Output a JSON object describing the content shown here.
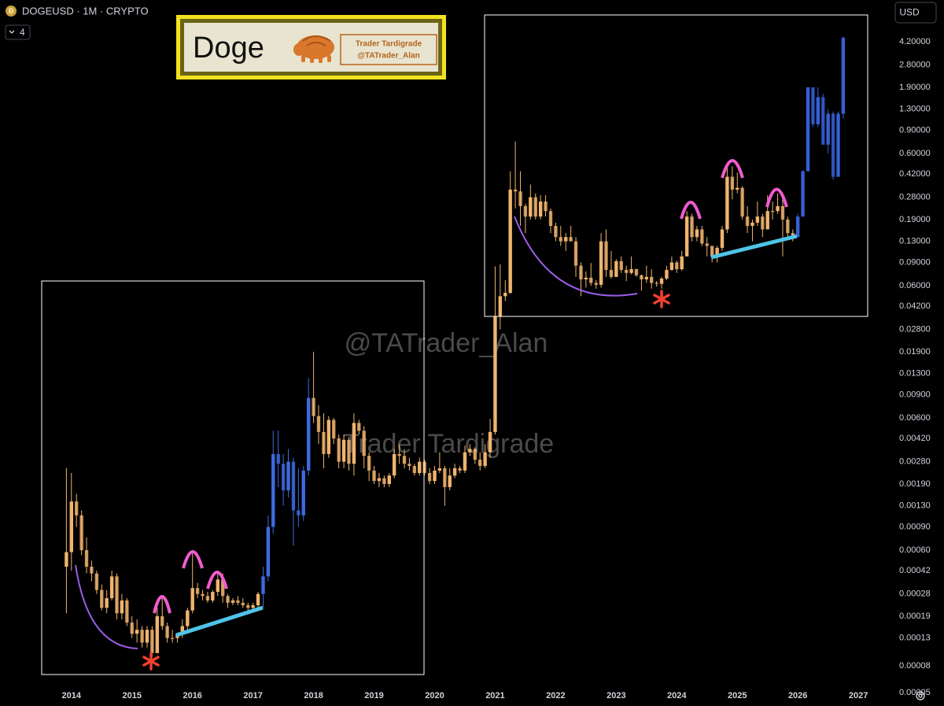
{
  "header": {
    "symbol": "DOGEUSD · 1M · CRYPTO",
    "indicator_count": 4,
    "currency": "USD"
  },
  "logo_box": {
    "title": "Doge",
    "author": "Trader Tardigrade",
    "handle": "@TATrader_Alan"
  },
  "watermarks": {
    "handle": "@TATrader_Alan",
    "name": "Trader Tardigrade"
  },
  "chart_data": {
    "type": "candlestick",
    "log_scale": true,
    "grid": false,
    "xlim": [
      2012.82,
      2027.57
    ],
    "xticks": [
      2014,
      2015,
      2016,
      2017,
      2018,
      2019,
      2020,
      2021,
      2022,
      2023,
      2024,
      2025,
      2026,
      2027
    ],
    "ylim": [
      5.76e-05,
      8.69
    ],
    "yticks": [
      {
        "value": 4.2,
        "label": "4.20000"
      },
      {
        "value": 2.8,
        "label": "2.80000"
      },
      {
        "value": 1.9,
        "label": "1.90000"
      },
      {
        "value": 1.3,
        "label": "1.30000"
      },
      {
        "value": 0.9,
        "label": "0.90000"
      },
      {
        "value": 0.6,
        "label": "0.60000"
      },
      {
        "value": 0.42,
        "label": "0.42000"
      },
      {
        "value": 0.28,
        "label": "0.28000"
      },
      {
        "value": 0.19,
        "label": "0.19000"
      },
      {
        "value": 0.13,
        "label": "0.13000"
      },
      {
        "value": 0.09,
        "label": "0.09000"
      },
      {
        "value": 0.06,
        "label": "0.06000"
      },
      {
        "value": 0.042,
        "label": "0.04200"
      },
      {
        "value": 0.028,
        "label": "0.02800"
      },
      {
        "value": 0.019,
        "label": "0.01900"
      },
      {
        "value": 0.013,
        "label": "0.01300"
      },
      {
        "value": 0.009,
        "label": "0.00900"
      },
      {
        "value": 0.006,
        "label": "0.00600"
      },
      {
        "value": 0.0042,
        "label": "0.00420"
      },
      {
        "value": 0.0028,
        "label": "0.00280"
      },
      {
        "value": 0.0019,
        "label": "0.00190"
      },
      {
        "value": 0.0013,
        "label": "0.00130"
      },
      {
        "value": 0.0009,
        "label": "0.00090"
      },
      {
        "value": 0.0006,
        "label": "0.00060"
      },
      {
        "value": 0.00042,
        "label": "0.00042"
      },
      {
        "value": 0.00028,
        "label": "0.00028"
      },
      {
        "value": 0.00019,
        "label": "0.00019"
      },
      {
        "value": 0.00013,
        "label": "0.00013"
      },
      {
        "value": 8e-05,
        "label": "0.00008"
      },
      {
        "value": 5e-05,
        "label": "0.00005"
      }
    ],
    "series": [
      {
        "color": "#f0b46e",
        "x": [
          2013.917,
          2014.0,
          2014.083,
          2014.167,
          2014.25,
          2014.333,
          2014.417,
          2014.5,
          2014.583,
          2014.667,
          2014.75,
          2014.833,
          2014.917,
          2015.0,
          2015.083,
          2015.167,
          2015.25,
          2015.333,
          2015.417,
          2015.5,
          2015.583,
          2015.667,
          2015.75,
          2015.833,
          2015.917,
          2016.0,
          2016.083,
          2016.167,
          2016.25,
          2016.333,
          2016.417,
          2016.5,
          2016.583,
          2016.667,
          2016.75,
          2016.833,
          2016.917,
          2017.0,
          2017.083
        ],
        "open": [
          0.00045,
          0.00058,
          0.0014,
          0.0011,
          0.0006,
          0.00045,
          0.0004,
          0.0003,
          0.00022,
          0.00026,
          0.00038,
          0.0002,
          0.00025,
          0.00017,
          0.00014,
          0.00015,
          0.00012,
          0.00015,
          0.0001,
          0.00019,
          0.00016,
          0.00013,
          0.00013,
          0.00014,
          0.00016,
          0.00021,
          0.00031,
          0.00028,
          0.00027,
          0.00025,
          0.00029,
          0.00036,
          0.00027,
          0.00024,
          0.00025,
          0.00024,
          0.00023,
          0.00022,
          0.00023
        ],
        "high": [
          0.0025,
          0.0023,
          0.0016,
          0.0012,
          0.00075,
          0.0005,
          0.00042,
          0.00033,
          0.0003,
          0.00042,
          0.0004,
          0.00028,
          0.00026,
          0.00019,
          0.00018,
          0.00016,
          0.00016,
          0.00016,
          0.00022,
          0.00026,
          0.00017,
          0.00015,
          0.00014,
          0.00018,
          0.00022,
          0.0006,
          0.00034,
          0.0003,
          0.00029,
          0.0003,
          0.00042,
          0.0004,
          0.00028,
          0.00026,
          0.00027,
          0.00026,
          0.00024,
          0.00024,
          0.00029
        ],
        "low": [
          0.0002,
          0.00042,
          0.0009,
          0.00055,
          0.0004,
          0.00035,
          0.00028,
          0.00021,
          0.0002,
          0.00025,
          0.00018,
          0.00018,
          0.00016,
          0.00013,
          0.00012,
          0.00011,
          0.00011,
          9.5e-05,
          0.0001,
          0.00015,
          0.00012,
          0.00012,
          0.00012,
          0.00013,
          0.00015,
          0.0002,
          0.00026,
          0.00025,
          0.00024,
          0.00024,
          0.00027,
          0.00024,
          0.00022,
          0.00023,
          0.00023,
          0.00022,
          0.00021,
          0.00021,
          0.00022
        ],
        "close": [
          0.00058,
          0.0014,
          0.0011,
          0.0006,
          0.00045,
          0.0004,
          0.0003,
          0.00022,
          0.00026,
          0.00038,
          0.0002,
          0.00025,
          0.00017,
          0.00014,
          0.00015,
          0.00012,
          0.00015,
          0.0001,
          0.00019,
          0.00016,
          0.00013,
          0.00013,
          0.00014,
          0.00016,
          0.00021,
          0.00031,
          0.00028,
          0.00027,
          0.00025,
          0.00029,
          0.00036,
          0.00027,
          0.00024,
          0.00025,
          0.00024,
          0.00023,
          0.00022,
          0.00023,
          0.00028
        ]
      },
      {
        "color": "#3d6be0",
        "x": [
          2017.167,
          2017.25,
          2017.333,
          2017.417,
          2017.5,
          2017.583,
          2017.667,
          2017.75,
          2017.833,
          2017.917
        ],
        "open": [
          0.00028,
          0.00038,
          0.0009,
          0.0032,
          0.0027,
          0.0017,
          0.0028,
          0.0012,
          0.0011,
          0.0024
        ],
        "high": [
          0.00045,
          0.0011,
          0.0048,
          0.0048,
          0.0032,
          0.0035,
          0.003,
          0.0025,
          0.0026,
          0.012
        ],
        "low": [
          0.00022,
          0.00035,
          0.0008,
          0.0018,
          0.0013,
          0.0015,
          0.00065,
          0.0009,
          0.001,
          0.0022
        ],
        "close": [
          0.00038,
          0.0009,
          0.0032,
          0.0027,
          0.0017,
          0.0028,
          0.0012,
          0.0011,
          0.0024,
          0.0085
        ]
      },
      {
        "color": "#f0b46e",
        "x": [
          2018.0,
          2018.083,
          2018.167,
          2018.25,
          2018.333,
          2018.417,
          2018.5,
          2018.583,
          2018.667,
          2018.75,
          2018.833,
          2018.917,
          2019.0,
          2019.083,
          2019.167,
          2019.25,
          2019.333,
          2019.417,
          2019.5,
          2019.583,
          2019.667,
          2019.75,
          2019.833,
          2019.917,
          2020.0,
          2020.083,
          2020.167,
          2020.25,
          2020.333,
          2020.417,
          2020.5,
          2020.583,
          2020.667,
          2020.75,
          2020.833,
          2020.917,
          2021.0,
          2021.083,
          2021.167,
          2021.25,
          2021.333,
          2021.417,
          2021.5,
          2021.583,
          2021.667,
          2021.75,
          2021.833,
          2021.917,
          2022.0,
          2022.083,
          2022.167,
          2022.25,
          2022.333,
          2022.417,
          2022.5,
          2022.583,
          2022.667,
          2022.75,
          2022.833,
          2022.917,
          2023.0,
          2023.083,
          2023.167,
          2023.25,
          2023.333,
          2023.417,
          2023.5,
          2023.583,
          2023.667,
          2023.75,
          2023.833,
          2023.917,
          2024.0,
          2024.083,
          2024.167,
          2024.25,
          2024.333,
          2024.417,
          2024.5,
          2024.583,
          2024.667,
          2024.75,
          2024.833,
          2024.917,
          2025.0,
          2025.083,
          2025.167,
          2025.25,
          2025.333,
          2025.417,
          2025.5,
          2025.583,
          2025.667,
          2025.75,
          2025.833,
          2025.917
        ],
        "open": [
          0.0085,
          0.0062,
          0.0047,
          0.0032,
          0.0058,
          0.0042,
          0.0028,
          0.0041,
          0.0027,
          0.0055,
          0.0048,
          0.0031,
          0.0024,
          0.002,
          0.0021,
          0.0019,
          0.0022,
          0.0032,
          0.0031,
          0.0027,
          0.0026,
          0.0023,
          0.0028,
          0.0023,
          0.002,
          0.0024,
          0.0025,
          0.0018,
          0.0022,
          0.0025,
          0.0024,
          0.0033,
          0.0035,
          0.0029,
          0.0026,
          0.0033,
          0.0047,
          0.035,
          0.05,
          0.053,
          0.32,
          0.31,
          0.24,
          0.2,
          0.28,
          0.2,
          0.26,
          0.22,
          0.17,
          0.14,
          0.13,
          0.14,
          0.13,
          0.085,
          0.067,
          0.069,
          0.063,
          0.061,
          0.13,
          0.079,
          0.07,
          0.092,
          0.079,
          0.075,
          0.08,
          0.072,
          0.067,
          0.07,
          0.063,
          0.062,
          0.068,
          0.079,
          0.09,
          0.08,
          0.1,
          0.2,
          0.14,
          0.16,
          0.125,
          0.12,
          0.1,
          0.116,
          0.16,
          0.4,
          0.32,
          0.33,
          0.2,
          0.17,
          0.18,
          0.2,
          0.16,
          0.22,
          0.22,
          0.24,
          0.19,
          0.15
        ],
        "high": [
          0.019,
          0.0075,
          0.0065,
          0.0062,
          0.006,
          0.0045,
          0.0045,
          0.0043,
          0.0065,
          0.0058,
          0.0052,
          0.0033,
          0.0026,
          0.0023,
          0.0022,
          0.0023,
          0.0035,
          0.0038,
          0.0035,
          0.003,
          0.0027,
          0.003,
          0.0029,
          0.0025,
          0.0026,
          0.0033,
          0.0026,
          0.0025,
          0.0027,
          0.0026,
          0.0037,
          0.0038,
          0.0036,
          0.0033,
          0.0038,
          0.0059,
          0.084,
          0.087,
          0.066,
          0.44,
          0.74,
          0.44,
          0.25,
          0.35,
          0.3,
          0.29,
          0.29,
          0.23,
          0.18,
          0.17,
          0.15,
          0.17,
          0.14,
          0.09,
          0.077,
          0.089,
          0.066,
          0.15,
          0.16,
          0.11,
          0.095,
          0.1,
          0.085,
          0.1,
          0.081,
          0.073,
          0.085,
          0.08,
          0.065,
          0.07,
          0.085,
          0.1,
          0.093,
          0.11,
          0.22,
          0.21,
          0.17,
          0.17,
          0.14,
          0.12,
          0.12,
          0.17,
          0.47,
          0.48,
          0.43,
          0.34,
          0.24,
          0.19,
          0.26,
          0.21,
          0.29,
          0.26,
          0.3,
          0.27,
          0.2,
          0.16
        ],
        "low": [
          0.0055,
          0.0038,
          0.0025,
          0.003,
          0.0038,
          0.0025,
          0.0025,
          0.0024,
          0.0022,
          0.0045,
          0.0025,
          0.002,
          0.0019,
          0.0018,
          0.0018,
          0.0018,
          0.0021,
          0.0027,
          0.0025,
          0.0024,
          0.0022,
          0.0022,
          0.0022,
          0.0019,
          0.0019,
          0.0023,
          0.0013,
          0.0017,
          0.0021,
          0.0023,
          0.0023,
          0.0031,
          0.0027,
          0.0024,
          0.0025,
          0.003,
          0.0045,
          0.028,
          0.046,
          0.052,
          0.23,
          0.17,
          0.15,
          0.19,
          0.19,
          0.19,
          0.2,
          0.15,
          0.13,
          0.12,
          0.11,
          0.13,
          0.07,
          0.05,
          0.058,
          0.06,
          0.057,
          0.058,
          0.07,
          0.068,
          0.07,
          0.075,
          0.065,
          0.073,
          0.07,
          0.055,
          0.063,
          0.057,
          0.059,
          0.057,
          0.066,
          0.078,
          0.075,
          0.078,
          0.1,
          0.13,
          0.13,
          0.12,
          0.1,
          0.09,
          0.09,
          0.11,
          0.15,
          0.27,
          0.3,
          0.19,
          0.15,
          0.13,
          0.17,
          0.14,
          0.16,
          0.19,
          0.21,
          0.1,
          0.14,
          0.13
        ],
        "close": [
          0.0062,
          0.0047,
          0.0032,
          0.0058,
          0.0042,
          0.0028,
          0.0041,
          0.0027,
          0.0055,
          0.0048,
          0.0031,
          0.0024,
          0.002,
          0.0021,
          0.0019,
          0.0022,
          0.0032,
          0.0031,
          0.0027,
          0.0026,
          0.0023,
          0.0028,
          0.0023,
          0.002,
          0.0024,
          0.0025,
          0.0018,
          0.0022,
          0.0025,
          0.0024,
          0.0033,
          0.0035,
          0.0029,
          0.0026,
          0.0033,
          0.0047,
          0.035,
          0.05,
          0.053,
          0.32,
          0.31,
          0.24,
          0.2,
          0.28,
          0.2,
          0.26,
          0.22,
          0.17,
          0.14,
          0.13,
          0.14,
          0.13,
          0.085,
          0.067,
          0.069,
          0.063,
          0.061,
          0.13,
          0.079,
          0.07,
          0.092,
          0.079,
          0.075,
          0.08,
          0.072,
          0.067,
          0.07,
          0.063,
          0.062,
          0.068,
          0.079,
          0.09,
          0.08,
          0.1,
          0.2,
          0.14,
          0.16,
          0.125,
          0.12,
          0.1,
          0.116,
          0.16,
          0.4,
          0.32,
          0.33,
          0.2,
          0.17,
          0.18,
          0.2,
          0.16,
          0.22,
          0.22,
          0.24,
          0.19,
          0.15,
          0.14
        ]
      },
      {
        "color": "#3560d8",
        "x": [
          2026.0,
          2026.083,
          2026.167,
          2026.25,
          2026.333,
          2026.417,
          2026.5,
          2026.583,
          2026.667,
          2026.75
        ],
        "open": [
          0.14,
          0.2,
          0.44,
          1.9,
          1.0,
          1.6,
          0.7,
          1.2,
          0.4,
          1.2
        ],
        "high": [
          0.21,
          0.45,
          1.9,
          1.9,
          1.9,
          1.7,
          1.3,
          1.25,
          1.25,
          4.6
        ],
        "low": [
          0.14,
          0.2,
          0.44,
          0.95,
          0.95,
          0.7,
          0.6,
          0.38,
          0.4,
          1.1
        ],
        "close": [
          0.2,
          0.44,
          1.9,
          1.0,
          1.6,
          0.7,
          1.2,
          0.4,
          1.2,
          4.5
        ]
      }
    ]
  }
}
